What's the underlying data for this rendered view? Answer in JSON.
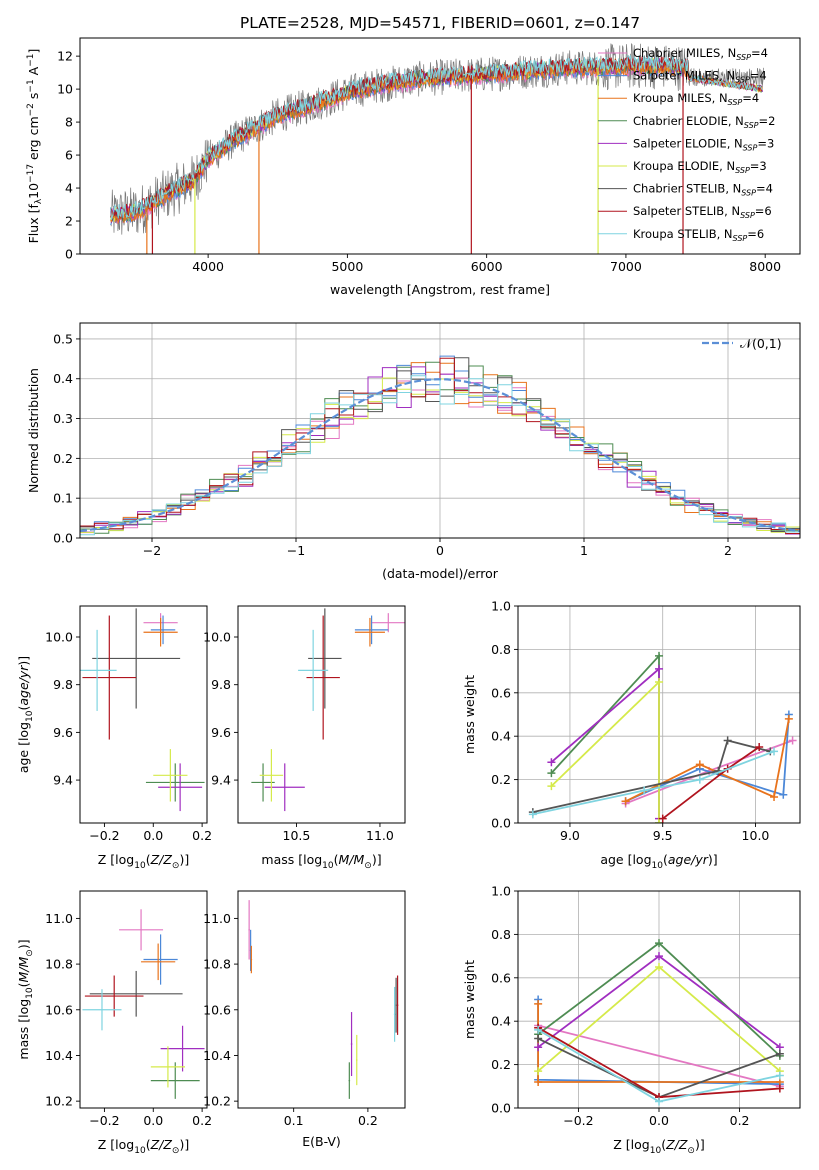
{
  "figure": {
    "title": "PLATE=2528, MJD=54571, FIBERID=0601, z=0.147",
    "models": [
      {
        "name": "Chabrier MILES",
        "n": "4",
        "color": "#e377c2"
      },
      {
        "name": "Salpeter MILES",
        "n": "4",
        "color": "#4c88d8"
      },
      {
        "name": "Kroupa MILES",
        "n": "4",
        "color": "#e8731c"
      },
      {
        "name": "Chabrier ELODIE",
        "n": "2",
        "color": "#4e8c52"
      },
      {
        "name": "Salpeter ELODIE",
        "n": "3",
        "color": "#a02ec0"
      },
      {
        "name": "Kroupa ELODIE",
        "n": "3",
        "color": "#d5ea4a"
      },
      {
        "name": "Chabrier STELIB",
        "n": "4",
        "color": "#555555"
      },
      {
        "name": "Salpeter STELIB",
        "n": "6",
        "color": "#b0141e"
      },
      {
        "name": "Kroupa STELIB",
        "n": "6",
        "color": "#7fd4e0"
      }
    ],
    "legend_n_label": "N",
    "legend_n_sub": "SSP"
  },
  "chart_data": [
    {
      "id": "spectrum",
      "type": "line",
      "xlabel": "wavelength [Angstrom, rest frame]",
      "ylabel": "Flux [f_λ 10^-17 erg cm^-2 s^-1 A^-1]",
      "xlim": [
        3080,
        8250
      ],
      "ylim": [
        0,
        13.1
      ],
      "xticks": [
        4000,
        5000,
        6000,
        7000,
        8000
      ],
      "yticks": [
        0,
        2,
        4,
        6,
        8,
        10,
        12
      ],
      "continuum": {
        "x": [
          3300,
          3500,
          3700,
          3900,
          4000,
          4200,
          4500,
          4800,
          5000,
          5200,
          5500,
          5800,
          6000,
          6300,
          6600,
          6800,
          7000,
          7200,
          7400
        ],
        "y": [
          2.3,
          2.6,
          3.6,
          4.5,
          5.8,
          7.0,
          8.4,
          9.2,
          9.8,
          10.2,
          10.6,
          10.8,
          10.9,
          11.1,
          11.3,
          11.3,
          11.4,
          11.4,
          11.3
        ]
      },
      "model_extent": {
        "x_end": 7980,
        "tail_y": [
          10.7,
          10.4,
          10.0
        ]
      },
      "dips": [
        {
          "model": "Kroupa MILES",
          "x": 3560
        },
        {
          "model": "Salpeter STELIB",
          "x": 3600
        },
        {
          "model": "Kroupa ELODIE",
          "x": 3905
        },
        {
          "model": "Kroupa MILES",
          "x": 4365
        },
        {
          "model": "Salpeter STELIB",
          "x": 5890
        },
        {
          "model": "Kroupa ELODIE",
          "x": 6800
        },
        {
          "model": "Salpeter STELIB",
          "x": 7410
        }
      ],
      "grid": false,
      "legend": "top-right"
    },
    {
      "id": "residuals",
      "type": "histogram",
      "xlabel": "(data-model)/error",
      "ylabel": "Normed distribution",
      "xlim": [
        -2.5,
        2.5
      ],
      "ylim": [
        0,
        0.54
      ],
      "xticks": [
        -2,
        -1,
        0,
        1,
        2
      ],
      "yticks": [
        0.0,
        0.1,
        0.2,
        0.3,
        0.4,
        0.5
      ],
      "bin_width": 0.1,
      "reference_curve": {
        "label": "𝒩(0,1)",
        "mean": 0,
        "sigma": 1,
        "color": "#5b8fd6",
        "style": "dashed"
      },
      "grid": true,
      "legend": "top-right"
    },
    {
      "id": "z-age",
      "type": "errorbar",
      "xlabel": "Z [log10(Z/Z⊙)]",
      "ylabel": "age [log10(age/yr)]",
      "xlim": [
        -0.3,
        0.22
      ],
      "ylim": [
        9.22,
        10.13
      ],
      "xticks": [
        -0.2,
        0.0,
        0.2
      ],
      "yticks": [
        9.4,
        9.6,
        9.8,
        10.0
      ],
      "points": [
        {
          "x": 0.03,
          "xerr": 0.07,
          "y": 10.06,
          "yerr": 0.04
        },
        {
          "x": 0.04,
          "xerr": 0.05,
          "y": 10.03,
          "yerr": 0.06
        },
        {
          "x": 0.03,
          "xerr": 0.07,
          "y": 10.02,
          "yerr": 0.06
        },
        {
          "x": 0.09,
          "xerr": 0.12,
          "y": 9.39,
          "yerr": 0.08
        },
        {
          "x": 0.11,
          "xerr": 0.09,
          "y": 9.37,
          "yerr": 0.1
        },
        {
          "x": 0.07,
          "xerr": 0.07,
          "y": 9.42,
          "yerr": 0.11
        },
        {
          "x": -0.07,
          "xerr": 0.18,
          "y": 9.91,
          "yerr": 0.21
        },
        {
          "x": -0.18,
          "xerr": 0.11,
          "y": 9.83,
          "yerr": 0.26
        },
        {
          "x": -0.23,
          "xerr": 0.08,
          "y": 9.86,
          "yerr": 0.17
        }
      ]
    },
    {
      "id": "mass-age",
      "type": "errorbar",
      "xlabel": "mass [log10(M/M⊙)]",
      "ylabel": "",
      "xlim": [
        10.15,
        11.15
      ],
      "ylim": [
        9.22,
        10.13
      ],
      "xticks": [
        10.5,
        11.0
      ],
      "yticks": [
        9.4,
        9.6,
        9.8,
        10.0
      ],
      "points": [
        {
          "x": 11.05,
          "xerr": 0.1,
          "y": 10.06,
          "yerr": 0.04
        },
        {
          "x": 10.95,
          "xerr": 0.1,
          "y": 10.03,
          "yerr": 0.06
        },
        {
          "x": 10.94,
          "xerr": 0.09,
          "y": 10.02,
          "yerr": 0.06
        },
        {
          "x": 10.3,
          "xerr": 0.07,
          "y": 9.39,
          "yerr": 0.08
        },
        {
          "x": 10.43,
          "xerr": 0.12,
          "y": 9.37,
          "yerr": 0.1
        },
        {
          "x": 10.35,
          "xerr": 0.07,
          "y": 9.42,
          "yerr": 0.11
        },
        {
          "x": 10.67,
          "xerr": 0.1,
          "y": 9.91,
          "yerr": 0.21
        },
        {
          "x": 10.66,
          "xerr": 0.1,
          "y": 9.83,
          "yerr": 0.26
        },
        {
          "x": 10.6,
          "xerr": 0.09,
          "y": 9.86,
          "yerr": 0.17
        }
      ]
    },
    {
      "id": "age-weight",
      "type": "line",
      "xlabel": "age [log10(age/yr)]",
      "ylabel": "mass weight",
      "xlim": [
        8.72,
        10.24
      ],
      "ylim": [
        0,
        1
      ],
      "xticks": [
        9.0,
        9.5,
        10.0
      ],
      "yticks": [
        0.0,
        0.2,
        0.4,
        0.6,
        0.8,
        1.0
      ],
      "grid": true,
      "series": [
        {
          "x": [
            9.3,
            9.75,
            10.2
          ],
          "y": [
            0.09,
            0.24,
            0.38
          ]
        },
        {
          "x": [
            9.3,
            9.7,
            10.15,
            10.18
          ],
          "y": [
            0.1,
            0.25,
            0.13,
            0.5
          ]
        },
        {
          "x": [
            9.3,
            9.7,
            10.1,
            10.18
          ],
          "y": [
            0.1,
            0.27,
            0.12,
            0.48
          ]
        },
        {
          "x": [
            8.9,
            9.48,
            9.48
          ],
          "y": [
            0.23,
            0.77,
            0.0
          ]
        },
        {
          "x": [
            8.9,
            9.48,
            9.48
          ],
          "y": [
            0.28,
            0.71,
            0.02
          ]
        },
        {
          "x": [
            8.9,
            9.48,
            9.48
          ],
          "y": [
            0.17,
            0.65,
            0.0
          ]
        },
        {
          "x": [
            8.8,
            9.8,
            9.85,
            10.08
          ],
          "y": [
            0.05,
            0.24,
            0.38,
            0.33
          ]
        },
        {
          "x": [
            9.5,
            9.85,
            10.02
          ],
          "y": [
            0.02,
            0.25,
            0.35
          ]
        },
        {
          "x": [
            8.8,
            9.4,
            9.7,
            10.1
          ],
          "y": [
            0.04,
            0.15,
            0.2,
            0.33
          ]
        }
      ]
    },
    {
      "id": "z-mass",
      "type": "errorbar",
      "xlabel": "Z [log10(Z/Z⊙)]",
      "ylabel": "mass [log10(M/M⊙)]",
      "xlim": [
        -0.3,
        0.22
      ],
      "ylim": [
        10.17,
        11.12
      ],
      "xticks": [
        -0.2,
        0.0,
        0.2
      ],
      "yticks": [
        10.2,
        10.4,
        10.6,
        10.8,
        11.0
      ],
      "points": [
        {
          "x": -0.05,
          "xerr": 0.09,
          "y": 10.95,
          "yerr": 0.09
        },
        {
          "x": 0.03,
          "xerr": 0.07,
          "y": 10.82,
          "yerr": 0.11
        },
        {
          "x": 0.02,
          "xerr": 0.07,
          "y": 10.81,
          "yerr": 0.08
        },
        {
          "x": 0.09,
          "xerr": 0.1,
          "y": 10.29,
          "yerr": 0.08
        },
        {
          "x": 0.12,
          "xerr": 0.09,
          "y": 10.43,
          "yerr": 0.1
        },
        {
          "x": 0.06,
          "xerr": 0.07,
          "y": 10.35,
          "yerr": 0.09
        },
        {
          "x": -0.07,
          "xerr": 0.19,
          "y": 10.67,
          "yerr": 0.1
        },
        {
          "x": -0.16,
          "xerr": 0.12,
          "y": 10.66,
          "yerr": 0.09
        },
        {
          "x": -0.21,
          "xerr": 0.08,
          "y": 10.6,
          "yerr": 0.09
        }
      ]
    },
    {
      "id": "ebv-mass",
      "type": "errorbar",
      "xlabel": "E(B-V)",
      "ylabel": "",
      "xlim": [
        0.025,
        0.25
      ],
      "ylim": [
        10.17,
        11.12
      ],
      "xticks": [
        0.1,
        0.2
      ],
      "yticks": [
        10.2,
        10.4,
        10.6,
        10.8,
        11.0
      ],
      "points": [
        {
          "x": 0.04,
          "xerr": 0.001,
          "y": 10.95,
          "yerr": 0.13
        },
        {
          "x": 0.042,
          "xerr": 0.001,
          "y": 10.86,
          "yerr": 0.09
        },
        {
          "x": 0.043,
          "xerr": 0.001,
          "y": 10.82,
          "yerr": 0.06
        },
        {
          "x": 0.175,
          "xerr": 0.001,
          "y": 10.29,
          "yerr": 0.08
        },
        {
          "x": 0.178,
          "xerr": 0.001,
          "y": 10.45,
          "yerr": 0.14
        },
        {
          "x": 0.185,
          "xerr": 0.001,
          "y": 10.38,
          "yerr": 0.11
        },
        {
          "x": 0.238,
          "xerr": 0.001,
          "y": 10.62,
          "yerr": 0.12
        },
        {
          "x": 0.24,
          "xerr": 0.001,
          "y": 10.62,
          "yerr": 0.13
        },
        {
          "x": 0.236,
          "xerr": 0.001,
          "y": 10.58,
          "yerr": 0.12
        }
      ]
    },
    {
      "id": "z-weight",
      "type": "line",
      "xlabel": "Z [log10(Z/Z⊙)]",
      "ylabel": "mass weight",
      "xlim": [
        -0.35,
        0.35
      ],
      "ylim": [
        0,
        1
      ],
      "xticks": [
        -0.2,
        0.0,
        0.2
      ],
      "yticks": [
        0.0,
        0.2,
        0.4,
        0.6,
        0.8,
        1.0
      ],
      "grid": true,
      "series": [
        {
          "x": [
            -0.3,
            0.3
          ],
          "y": [
            0.38,
            0.1
          ]
        },
        {
          "x": [
            -0.3,
            -0.3,
            0.3
          ],
          "y": [
            0.5,
            0.13,
            0.11
          ]
        },
        {
          "x": [
            -0.3,
            -0.3,
            0.3
          ],
          "y": [
            0.48,
            0.12,
            0.12
          ]
        },
        {
          "x": [
            -0.3,
            0.0,
            0.3
          ],
          "y": [
            0.34,
            0.76,
            0.24
          ]
        },
        {
          "x": [
            -0.3,
            0.0,
            0.3
          ],
          "y": [
            0.28,
            0.7,
            0.28
          ]
        },
        {
          "x": [
            -0.3,
            0.0,
            0.3
          ],
          "y": [
            0.17,
            0.65,
            0.17
          ]
        },
        {
          "x": [
            -0.3,
            0.0,
            0.3
          ],
          "y": [
            0.32,
            0.05,
            0.25
          ]
        },
        {
          "x": [
            -0.3,
            0.0,
            0.3
          ],
          "y": [
            0.37,
            0.05,
            0.09
          ]
        },
        {
          "x": [
            -0.3,
            0.0,
            0.3
          ],
          "y": [
            0.36,
            0.03,
            0.15
          ]
        }
      ]
    }
  ]
}
